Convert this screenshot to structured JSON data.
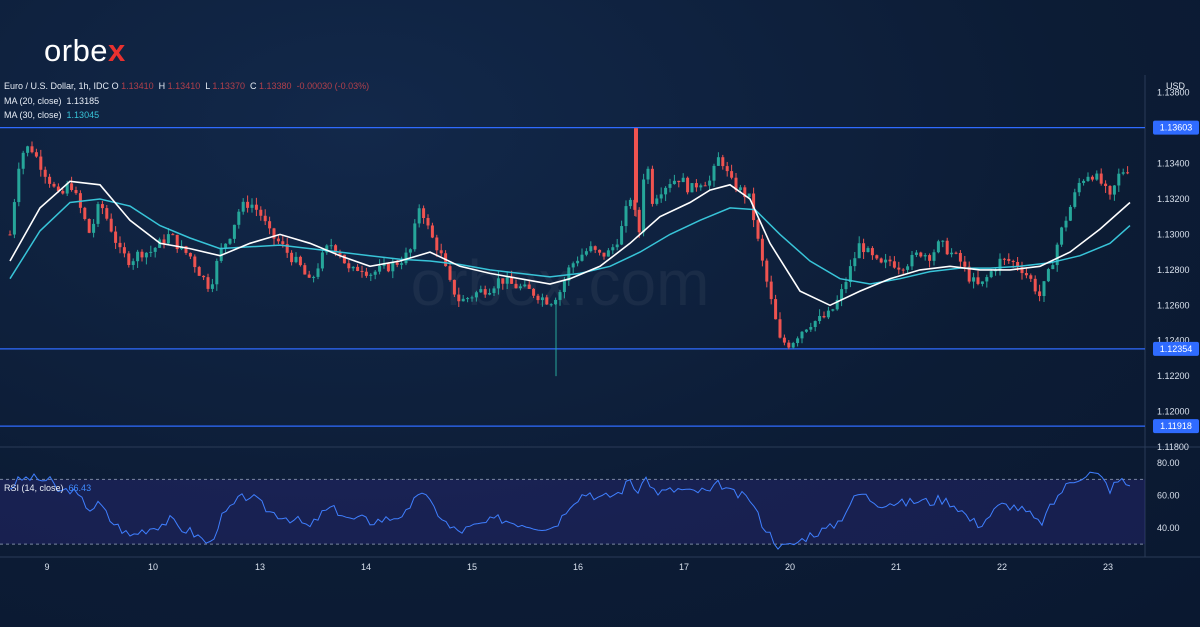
{
  "brand": {
    "name_main": "orbe",
    "name_accent": "x"
  },
  "watermark": "orbex.com",
  "legend": {
    "symbol": "Euro / U.S. Dollar, 1h, IDC",
    "o_label": "O",
    "o_value": "1.13410",
    "h_label": "H",
    "h_value": "1.13410",
    "l_label": "L",
    "l_value": "1.13370",
    "c_label": "C",
    "c_value": "1.13380",
    "change": "-0.00030 (-0.03%)",
    "ma20_label": "MA (20, close)",
    "ma20_value": "1.13185",
    "ma30_label": "MA (30, close)",
    "ma30_value": "1.13045",
    "rsi_label": "RSI (14, close)",
    "rsi_value": "66.43"
  },
  "colors": {
    "up": "#26a69a",
    "down": "#ef5350",
    "ma20": "#ffffff",
    "ma30": "#38c4d8",
    "level_line": "#2f6bff",
    "rsi_line": "#3f7fff",
    "accent": "#e8312f"
  },
  "chart_data": [
    {
      "type": "candlestick",
      "title": "Euro / U.S. Dollar, 1h, IDC",
      "ylabel": "USD",
      "ylim": [
        1.118,
        1.139
      ],
      "y_ticks": [
        "1.13800",
        "1.13600",
        "1.13400",
        "1.13200",
        "1.13000",
        "1.12800",
        "1.12600",
        "1.12400",
        "1.12200",
        "1.12000",
        "1.11800"
      ],
      "x_ticks": [
        "9",
        "10",
        "13",
        "14",
        "15",
        "16",
        "17",
        "20",
        "21",
        "22",
        "23"
      ],
      "horizontal_levels": [
        {
          "value": 1.13603,
          "label": "1.13603"
        },
        {
          "value": 1.12354,
          "label": "1.12354"
        },
        {
          "value": 1.11918,
          "label": "1.11918"
        }
      ],
      "close_series": [
        [
          0,
          1.13
        ],
        [
          10,
          1.1345
        ],
        [
          20,
          1.135
        ],
        [
          30,
          1.134
        ],
        [
          40,
          1.133
        ],
        [
          50,
          1.132
        ],
        [
          60,
          1.133
        ],
        [
          70,
          1.1315
        ],
        [
          80,
          1.13
        ],
        [
          90,
          1.1318
        ],
        [
          100,
          1.1305
        ],
        [
          110,
          1.129
        ],
        [
          120,
          1.1285
        ],
        [
          130,
          1.129
        ],
        [
          140,
          1.129
        ],
        [
          150,
          1.1295
        ],
        [
          160,
          1.13
        ],
        [
          170,
          1.1292
        ],
        [
          180,
          1.1288
        ],
        [
          190,
          1.1278
        ],
        [
          200,
          1.127
        ],
        [
          210,
          1.129
        ],
        [
          220,
          1.13
        ],
        [
          230,
          1.1315
        ],
        [
          240,
          1.1318
        ],
        [
          250,
          1.1312
        ],
        [
          260,
          1.13
        ],
        [
          270,
          1.1295
        ],
        [
          280,
          1.1288
        ],
        [
          290,
          1.1282
        ],
        [
          300,
          1.1272
        ],
        [
          310,
          1.1285
        ],
        [
          320,
          1.1295
        ],
        [
          330,
          1.129
        ],
        [
          340,
          1.1278
        ],
        [
          350,
          1.1282
        ],
        [
          360,
          1.1278
        ],
        [
          370,
          1.128
        ],
        [
          380,
          1.1282
        ],
        [
          390,
          1.1285
        ],
        [
          400,
          1.129
        ],
        [
          410,
          1.1318
        ],
        [
          420,
          1.13
        ],
        [
          430,
          1.129
        ],
        [
          440,
          1.1272
        ],
        [
          450,
          1.1262
        ],
        [
          460,
          1.1265
        ],
        [
          470,
          1.1268
        ],
        [
          480,
          1.127
        ],
        [
          490,
          1.1275
        ],
        [
          500,
          1.1272
        ],
        [
          510,
          1.127
        ],
        [
          520,
          1.1268
        ],
        [
          530,
          1.1265
        ],
        [
          540,
          1.1262
        ],
        [
          550,
          1.1268
        ],
        [
          560,
          1.1282
        ],
        [
          570,
          1.1288
        ],
        [
          580,
          1.1292
        ],
        [
          590,
          1.1288
        ],
        [
          600,
          1.129
        ],
        [
          610,
          1.13
        ],
        [
          620,
          1.1322
        ],
        [
          630,
          1.13
        ],
        [
          636,
          1.1355
        ],
        [
          640,
          1.1318
        ],
        [
          650,
          1.1325
        ],
        [
          660,
          1.133
        ],
        [
          670,
          1.1332
        ],
        [
          680,
          1.1325
        ],
        [
          690,
          1.133
        ],
        [
          700,
          1.133
        ],
        [
          710,
          1.1345
        ],
        [
          720,
          1.133
        ],
        [
          730,
          1.1325
        ],
        [
          740,
          1.132
        ],
        [
          750,
          1.129
        ],
        [
          760,
          1.1265
        ],
        [
          770,
          1.124
        ],
        [
          780,
          1.1238
        ],
        [
          790,
          1.1245
        ],
        [
          800,
          1.125
        ],
        [
          810,
          1.1252
        ],
        [
          820,
          1.1255
        ],
        [
          830,
          1.1265
        ],
        [
          840,
          1.128
        ],
        [
          850,
          1.1295
        ],
        [
          860,
          1.1288
        ],
        [
          870,
          1.1282
        ],
        [
          880,
          1.1285
        ],
        [
          890,
          1.1282
        ],
        [
          900,
          1.1285
        ],
        [
          910,
          1.129
        ],
        [
          920,
          1.1288
        ],
        [
          930,
          1.1295
        ],
        [
          940,
          1.129
        ],
        [
          950,
          1.1285
        ],
        [
          960,
          1.1275
        ],
        [
          970,
          1.127
        ],
        [
          980,
          1.1278
        ],
        [
          990,
          1.1285
        ],
        [
          1000,
          1.1285
        ],
        [
          1010,
          1.1282
        ],
        [
          1020,
          1.1275
        ],
        [
          1030,
          1.1265
        ],
        [
          1040,
          1.128
        ],
        [
          1050,
          1.13
        ],
        [
          1060,
          1.1315
        ],
        [
          1070,
          1.133
        ],
        [
          1080,
          1.1335
        ],
        [
          1090,
          1.133
        ],
        [
          1100,
          1.132
        ],
        [
          1110,
          1.1335
        ],
        [
          1120,
          1.1338
        ]
      ],
      "ma20": [
        [
          0,
          1.1285
        ],
        [
          30,
          1.1315
        ],
        [
          60,
          1.133
        ],
        [
          90,
          1.1328
        ],
        [
          120,
          1.1308
        ],
        [
          150,
          1.1295
        ],
        [
          180,
          1.1292
        ],
        [
          210,
          1.1288
        ],
        [
          240,
          1.1295
        ],
        [
          270,
          1.13
        ],
        [
          300,
          1.1295
        ],
        [
          330,
          1.1288
        ],
        [
          360,
          1.1282
        ],
        [
          390,
          1.1285
        ],
        [
          420,
          1.129
        ],
        [
          450,
          1.1282
        ],
        [
          480,
          1.1278
        ],
        [
          510,
          1.1275
        ],
        [
          540,
          1.1272
        ],
        [
          560,
          1.1275
        ],
        [
          590,
          1.1282
        ],
        [
          620,
          1.1295
        ],
        [
          650,
          1.131
        ],
        [
          680,
          1.1318
        ],
        [
          700,
          1.1325
        ],
        [
          720,
          1.1328
        ],
        [
          740,
          1.132
        ],
        [
          760,
          1.1295
        ],
        [
          790,
          1.1268
        ],
        [
          820,
          1.126
        ],
        [
          850,
          1.1268
        ],
        [
          880,
          1.1275
        ],
        [
          910,
          1.128
        ],
        [
          940,
          1.1282
        ],
        [
          970,
          1.128
        ],
        [
          1000,
          1.128
        ],
        [
          1030,
          1.1282
        ],
        [
          1060,
          1.129
        ],
        [
          1090,
          1.1303
        ],
        [
          1120,
          1.1318
        ]
      ],
      "ma30": [
        [
          0,
          1.1275
        ],
        [
          30,
          1.1302
        ],
        [
          60,
          1.1318
        ],
        [
          90,
          1.132
        ],
        [
          120,
          1.1316
        ],
        [
          150,
          1.1305
        ],
        [
          180,
          1.1298
        ],
        [
          210,
          1.1292
        ],
        [
          240,
          1.1293
        ],
        [
          270,
          1.1294
        ],
        [
          300,
          1.1292
        ],
        [
          330,
          1.129
        ],
        [
          360,
          1.1288
        ],
        [
          390,
          1.1286
        ],
        [
          420,
          1.1285
        ],
        [
          450,
          1.1283
        ],
        [
          480,
          1.128
        ],
        [
          510,
          1.1278
        ],
        [
          540,
          1.1276
        ],
        [
          570,
          1.1278
        ],
        [
          600,
          1.1282
        ],
        [
          630,
          1.129
        ],
        [
          660,
          1.13
        ],
        [
          690,
          1.1308
        ],
        [
          720,
          1.1315
        ],
        [
          745,
          1.1314
        ],
        [
          770,
          1.13
        ],
        [
          800,
          1.1285
        ],
        [
          830,
          1.1275
        ],
        [
          860,
          1.1272
        ],
        [
          890,
          1.1275
        ],
        [
          920,
          1.1279
        ],
        [
          950,
          1.1281
        ],
        [
          980,
          1.1281
        ],
        [
          1010,
          1.1282
        ],
        [
          1040,
          1.1284
        ],
        [
          1070,
          1.1288
        ],
        [
          1100,
          1.1295
        ],
        [
          1120,
          1.1305
        ]
      ]
    },
    {
      "type": "line",
      "title": "RSI (14, close)",
      "ylim": [
        27,
        82
      ],
      "y_ticks": [
        "80.00",
        "60.00",
        "40.00"
      ],
      "bands": [
        70,
        30
      ],
      "values": [
        [
          0,
          65
        ],
        [
          10,
          70
        ],
        [
          20,
          71
        ],
        [
          30,
          70
        ],
        [
          40,
          69
        ],
        [
          50,
          62
        ],
        [
          60,
          64
        ],
        [
          70,
          58
        ],
        [
          80,
          52
        ],
        [
          90,
          55
        ],
        [
          100,
          45
        ],
        [
          110,
          40
        ],
        [
          120,
          35
        ],
        [
          130,
          38
        ],
        [
          140,
          40
        ],
        [
          150,
          42
        ],
        [
          160,
          45
        ],
        [
          170,
          40
        ],
        [
          180,
          38
        ],
        [
          190,
          34
        ],
        [
          200,
          30
        ],
        [
          210,
          45
        ],
        [
          220,
          52
        ],
        [
          230,
          58
        ],
        [
          240,
          60
        ],
        [
          250,
          55
        ],
        [
          260,
          50
        ],
        [
          270,
          48
        ],
        [
          280,
          46
        ],
        [
          290,
          44
        ],
        [
          300,
          40
        ],
        [
          310,
          48
        ],
        [
          320,
          52
        ],
        [
          330,
          50
        ],
        [
          340,
          45
        ],
        [
          350,
          46
        ],
        [
          360,
          44
        ],
        [
          370,
          45
        ],
        [
          380,
          46
        ],
        [
          390,
          48
        ],
        [
          400,
          50
        ],
        [
          410,
          65
        ],
        [
          420,
          55
        ],
        [
          430,
          48
        ],
        [
          440,
          40
        ],
        [
          450,
          38
        ],
        [
          460,
          40
        ],
        [
          470,
          42
        ],
        [
          480,
          44
        ],
        [
          490,
          46
        ],
        [
          500,
          44
        ],
        [
          510,
          43
        ],
        [
          520,
          42
        ],
        [
          530,
          41
        ],
        [
          540,
          40
        ],
        [
          550,
          45
        ],
        [
          560,
          55
        ],
        [
          570,
          60
        ],
        [
          580,
          62
        ],
        [
          590,
          58
        ],
        [
          600,
          60
        ],
        [
          610,
          62
        ],
        [
          620,
          70
        ],
        [
          630,
          60
        ],
        [
          636,
          74
        ],
        [
          640,
          65
        ],
        [
          650,
          62
        ],
        [
          660,
          63
        ],
        [
          670,
          64
        ],
        [
          680,
          62
        ],
        [
          690,
          63
        ],
        [
          700,
          62
        ],
        [
          710,
          68
        ],
        [
          720,
          62
        ],
        [
          730,
          60
        ],
        [
          740,
          58
        ],
        [
          750,
          45
        ],
        [
          760,
          36
        ],
        [
          770,
          28
        ],
        [
          780,
          29
        ],
        [
          790,
          32
        ],
        [
          800,
          36
        ],
        [
          810,
          38
        ],
        [
          820,
          40
        ],
        [
          830,
          45
        ],
        [
          840,
          55
        ],
        [
          850,
          62
        ],
        [
          860,
          58
        ],
        [
          870,
          55
        ],
        [
          880,
          56
        ],
        [
          890,
          55
        ],
        [
          900,
          56
        ],
        [
          910,
          57
        ],
        [
          920,
          56
        ],
        [
          930,
          58
        ],
        [
          940,
          56
        ],
        [
          950,
          52
        ],
        [
          960,
          45
        ],
        [
          970,
          42
        ],
        [
          980,
          48
        ],
        [
          990,
          54
        ],
        [
          1000,
          54
        ],
        [
          1010,
          52
        ],
        [
          1020,
          48
        ],
        [
          1030,
          42
        ],
        [
          1040,
          52
        ],
        [
          1050,
          62
        ],
        [
          1060,
          68
        ],
        [
          1070,
          72
        ],
        [
          1080,
          74
        ],
        [
          1090,
          72
        ],
        [
          1100,
          64
        ],
        [
          1110,
          70
        ],
        [
          1120,
          66
        ]
      ]
    }
  ]
}
